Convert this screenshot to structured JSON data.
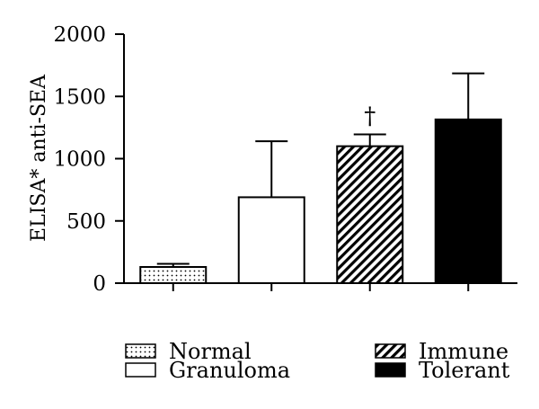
{
  "chart_data": {
    "type": "bar",
    "title": "",
    "xlabel": "",
    "ylabel": "ELISA* anti-SEA",
    "ylim": [
      0,
      2000
    ],
    "yticks": [
      0,
      500,
      1000,
      1500,
      2000
    ],
    "grid": false,
    "legend_position": "bottom",
    "categories": [
      "Normal",
      "Granuloma",
      "Immune",
      "Tolerant"
    ],
    "values": [
      130,
      690,
      1100,
      1315
    ],
    "errors": [
      25,
      450,
      95,
      370
    ],
    "fills": [
      "dotted",
      "white",
      "hatched",
      "black"
    ],
    "annotations": [
      {
        "category": "Immune",
        "text": "†"
      }
    ]
  }
}
